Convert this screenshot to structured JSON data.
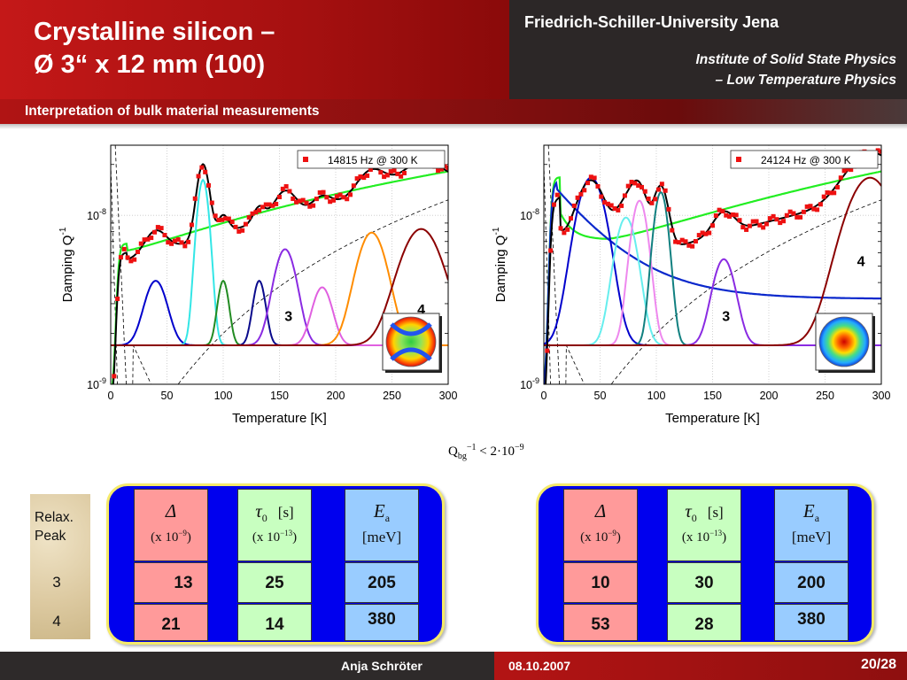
{
  "header": {
    "title_line1": "Crystalline silicon –",
    "title_line2": "Ø 3“ x 12 mm (100)",
    "university": "Friedrich-Schiller-University Jena",
    "institute_line1": "Institute of Solid State Physics",
    "institute_line2": "– Low Temperature Physics",
    "subtitle": "Interpretation of bulk material measurements",
    "colors": {
      "red": "#c41818",
      "dark": "#2c2727"
    }
  },
  "chart_data": [
    {
      "type": "line",
      "legend": "14815 Hz @ 300 K",
      "xlabel": "Temperature [K]",
      "ylabel": "Damping Q",
      "ylabel_sup": "-1",
      "xlim": [
        0,
        300
      ],
      "yscale": "log",
      "ylim": [
        1e-09,
        2.6e-08
      ],
      "xticks": [
        "0",
        "50",
        "100",
        "150",
        "200",
        "250",
        "300"
      ],
      "yticks": [
        {
          "base": "10",
          "exp": "-8",
          "value": 1e-08
        },
        {
          "base": "10",
          "exp": "-9",
          "value": 1e-09
        }
      ],
      "peak_labels": [
        {
          "text": "3",
          "x": 158,
          "y": 2.37e-09
        },
        {
          "text": "4",
          "x": 276,
          "y": 2.6e-09
        }
      ],
      "background": 1.7e-09,
      "peaks": [
        {
          "center": 40,
          "width": 9,
          "height": 2.4e-09,
          "color": "#0000cc"
        },
        {
          "center": 82,
          "width": 5,
          "height": 1.45e-08,
          "color": "#33e6e6"
        },
        {
          "center": 100,
          "width": 4.5,
          "height": 2.4e-09,
          "color": "#228b22"
        },
        {
          "center": 132,
          "width": 5,
          "height": 2.4e-09,
          "color": "#0a0a8c"
        },
        {
          "center": 155,
          "width": 9,
          "height": 4.6e-09,
          "color": "#8a2be2"
        },
        {
          "center": 188,
          "width": 8,
          "height": 2.05e-09,
          "color": "#e060e0"
        },
        {
          "center": 232,
          "width": 12,
          "height": 6.2e-09,
          "color": "#ff8c00"
        },
        {
          "center": 276,
          "width": 17,
          "height": 6.6e-09,
          "color": "#8b0000"
        }
      ],
      "colors": {
        "fit": "#000000",
        "data": "#ee1111",
        "green": "#22ee22",
        "dashed": "#000000"
      }
    },
    {
      "type": "line",
      "legend": "24124 Hz @ 300 K",
      "xlabel": "Temperature [K]",
      "ylabel": "Damping Q",
      "ylabel_sup": "-1",
      "xlim": [
        0,
        300
      ],
      "yscale": "log",
      "ylim": [
        1e-09,
        2.6e-08
      ],
      "xticks": [
        "0",
        "50",
        "100",
        "150",
        "200",
        "250",
        "300"
      ],
      "yticks": [
        {
          "base": "10",
          "exp": "-8",
          "value": 1e-08
        },
        {
          "base": "10",
          "exp": "-9",
          "value": 1e-09
        }
      ],
      "peak_labels": [
        {
          "text": "4",
          "x": 282,
          "y": 5e-09
        },
        {
          "text": "3",
          "x": 162,
          "y": 2.37e-09
        }
      ],
      "background": 1.7e-09,
      "peaks": [
        {
          "center": 42,
          "width": 12,
          "height": 1.5e-08,
          "color": "#0000cc"
        },
        {
          "center": 73,
          "width": 9,
          "height": 8e-09,
          "color": "#66eeee"
        },
        {
          "center": 85,
          "width": 7,
          "height": 1.05e-08,
          "color": "#ee88ee"
        },
        {
          "center": 104,
          "width": 6,
          "height": 1.2e-08,
          "color": "#118080"
        },
        {
          "center": 160,
          "width": 9,
          "height": 3.8e-09,
          "color": "#8a2be2"
        },
        {
          "center": 290,
          "width": 20,
          "height": 1.5e-08,
          "color": "#8b0000"
        }
      ],
      "colors": {
        "fit": "#000000",
        "data": "#ee1111",
        "green": "#22ee22",
        "blue": "#0a28cc",
        "dashed": "#000000"
      }
    }
  ],
  "formula": {
    "q": "Q",
    "sub": "bg",
    "sup": "−1",
    "rest": " < 2·10",
    "rest_sup": "−9"
  },
  "relax": {
    "title_line1": "Relax.",
    "title_line2": "Peak",
    "peak3": "3",
    "peak4": "4"
  },
  "headers": {
    "delta": "Δ",
    "delta_scale": "x 10",
    "delta_scale_sup": "−9",
    "tau": "τ",
    "tau_sub": "0",
    "tau_unit": "[s]",
    "tau_scale": "x 10",
    "tau_scale_sup": "−13",
    "ea": "E",
    "ea_sub": "a",
    "ea_unit": "[meV]"
  },
  "table_left": {
    "delta": [
      "13",
      "21"
    ],
    "tau": [
      "25",
      "14"
    ],
    "ea": [
      "205",
      "380"
    ]
  },
  "table_right": {
    "delta": [
      "10",
      "53"
    ],
    "tau": [
      "30",
      "28"
    ],
    "ea": [
      "200",
      "380"
    ]
  },
  "footer": {
    "author": "Anja Schröter",
    "date": "08.10.2007",
    "page": "20",
    "total": "/28"
  }
}
